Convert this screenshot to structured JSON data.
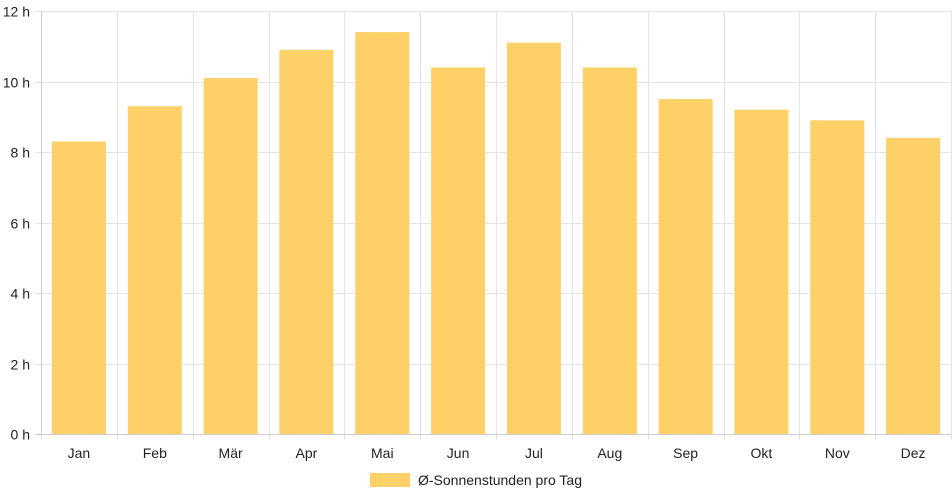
{
  "chart_data": {
    "type": "bar",
    "categories": [
      "Jan",
      "Feb",
      "Mär",
      "Apr",
      "Mai",
      "Jun",
      "Jul",
      "Aug",
      "Sep",
      "Okt",
      "Nov",
      "Dez"
    ],
    "series": [
      {
        "name": "Ø-Sonnenstunden pro Tag",
        "values": [
          8.3,
          9.3,
          10.1,
          10.9,
          11.4,
          10.4,
          11.1,
          10.4,
          9.5,
          9.2,
          8.9,
          8.4
        ]
      }
    ],
    "ylim": [
      0,
      12
    ],
    "yticks": [
      0,
      2,
      4,
      6,
      8,
      10,
      12
    ],
    "ytick_suffix": " h",
    "grid": true,
    "legend_position": "bottom",
    "colors": {
      "bar": "#fdd068",
      "grid": "#e4e4e4",
      "axis": "#cccccc"
    }
  }
}
